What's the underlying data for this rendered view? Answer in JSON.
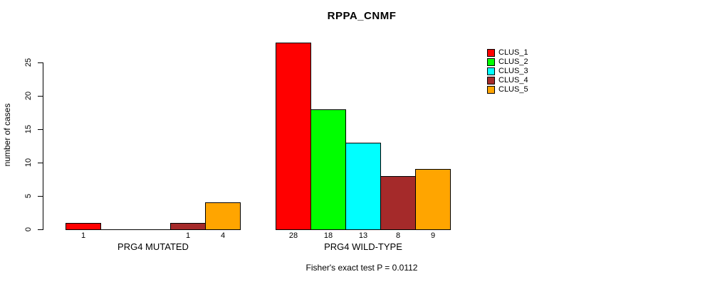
{
  "title": "RPPA_CNMF",
  "annotation": "Fisher's exact test P = 0.0112",
  "colors": {
    "clus_1": "#FF0000",
    "clus_2": "#00FF00",
    "clus_3": "#00FFFF",
    "clus_4": "#A52A2A",
    "clus_5": "#FFA500",
    "axis": "#000000",
    "background": "#FFFFFF"
  },
  "chart_data": {
    "type": "bar",
    "title": "RPPA_CNMF",
    "xlabel": "",
    "ylabel": "number of cases",
    "annotation": "Fisher's exact test P = 0.0112",
    "categories": [
      "PRG4 MUTATED",
      "PRG4 WILD-TYPE"
    ],
    "series": [
      {
        "name": "CLUS_1",
        "color": "#FF0000",
        "values": [
          1,
          28
        ]
      },
      {
        "name": "CLUS_2",
        "color": "#00FF00",
        "values": [
          0,
          18
        ]
      },
      {
        "name": "CLUS_3",
        "color": "#00FFFF",
        "values": [
          0,
          13
        ]
      },
      {
        "name": "CLUS_4",
        "color": "#A52A2A",
        "values": [
          1,
          8
        ]
      },
      {
        "name": "CLUS_5",
        "color": "#FFA500",
        "values": [
          4,
          9
        ]
      }
    ],
    "bar_value_labels": [
      [
        "1",
        "",
        "",
        "1",
        "4"
      ],
      [
        "28",
        "18",
        "13",
        "8",
        "9"
      ]
    ],
    "yticks": [
      0,
      5,
      10,
      15,
      20,
      25
    ],
    "ylim": [
      0,
      28
    ],
    "grid": false,
    "legend_position": "top-right",
    "legend": [
      "CLUS_1",
      "CLUS_2",
      "CLUS_3",
      "CLUS_4",
      "CLUS_5"
    ]
  }
}
